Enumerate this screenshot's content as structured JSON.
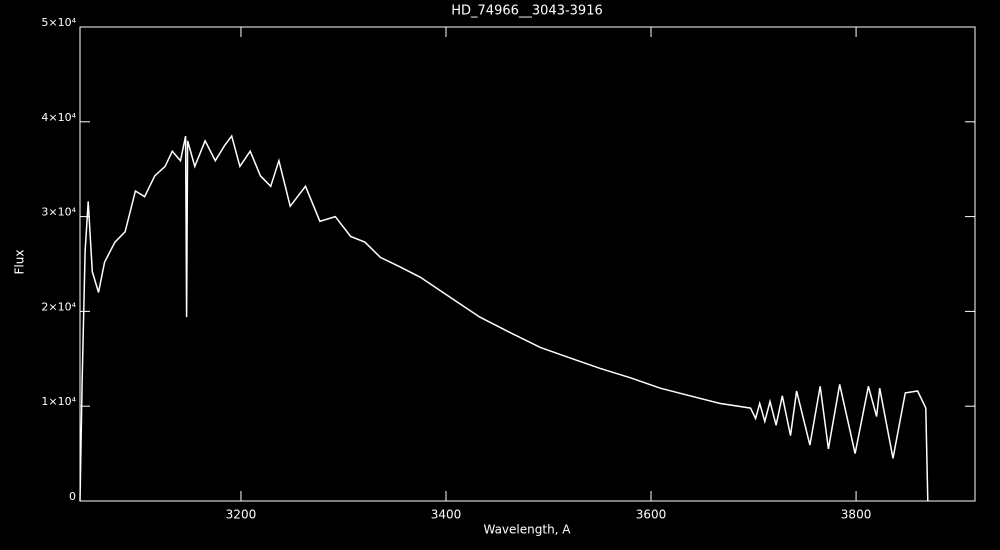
{
  "chart_data": {
    "type": "line",
    "title": "HD_74966__3043-3916",
    "x_label": "Wavelength, A",
    "y_label": "Flux",
    "xlim": [
      3043,
      3916
    ],
    "ylim": [
      0,
      50000
    ],
    "xticks": [
      3200,
      3400,
      3600,
      3800
    ],
    "yticks": [
      0,
      {
        "value": 10000,
        "label": "1×10⁴"
      },
      {
        "value": 20000,
        "label": "2×10⁴"
      },
      {
        "value": 30000,
        "label": "3×10⁴"
      },
      {
        "value": 40000,
        "label": "4×10⁴"
      },
      {
        "value": 50000,
        "label": "5×10⁴"
      }
    ],
    "grid": false,
    "series": [
      {
        "color": "#ffffff",
        "x": [
          3043,
          3045,
          3048,
          3051,
          3055,
          3061,
          3067,
          3077,
          3087,
          3097,
          3106,
          3116,
          3126,
          3133,
          3141,
          3146,
          3147,
          3148,
          3155,
          3165,
          3175,
          3184,
          3191,
          3199,
          3209,
          3219,
          3229,
          3237,
          3248,
          3263,
          3277,
          3292,
          3307,
          3321,
          3336,
          3355,
          3375,
          3404,
          3433,
          3462,
          3492,
          3521,
          3550,
          3580,
          3609,
          3638,
          3667,
          3697,
          3702,
          3706,
          3711,
          3716,
          3722,
          3728,
          3736,
          3742,
          3755,
          3765,
          3773,
          3784,
          3799,
          3812,
          3820,
          3823,
          3836,
          3848,
          3860,
          3868,
          3870
        ],
        "values": [
          0,
          12400,
          26300,
          31600,
          24200,
          22000,
          25200,
          27300,
          28400,
          32700,
          32100,
          34300,
          35300,
          36900,
          35900,
          38500,
          19400,
          38000,
          35300,
          38000,
          35900,
          37500,
          38500,
          35300,
          36900,
          34300,
          33200,
          35900,
          31100,
          33200,
          29500,
          30000,
          27900,
          27300,
          25700,
          24700,
          23600,
          21500,
          19400,
          17800,
          16200,
          15100,
          14000,
          13000,
          11900,
          11100,
          10300,
          9800,
          8700,
          10300,
          8400,
          10500,
          8000,
          11100,
          6900,
          11600,
          5900,
          12100,
          5500,
          12300,
          5000,
          12100,
          8900,
          11900,
          4500,
          11400,
          11600,
          9800,
          0
        ]
      }
    ]
  }
}
